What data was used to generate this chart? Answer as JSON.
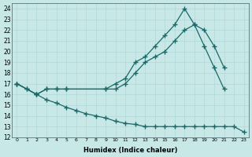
{
  "xlabel": "Humidex (Indice chaleur)",
  "bg_color": "#c8e8e8",
  "grid_color": "#b0d8d8",
  "line_color": "#1a6868",
  "xlim": [
    -0.5,
    23.5
  ],
  "ylim": [
    12,
    24.5
  ],
  "xticks": [
    0,
    1,
    2,
    3,
    4,
    5,
    6,
    7,
    8,
    9,
    10,
    11,
    12,
    13,
    14,
    15,
    16,
    17,
    18,
    19,
    20,
    21,
    22,
    23
  ],
  "yticks": [
    12,
    13,
    14,
    15,
    16,
    17,
    18,
    19,
    20,
    21,
    22,
    23,
    24
  ],
  "series": [
    {
      "x": [
        0,
        1,
        2,
        3,
        4,
        5,
        9,
        10,
        11,
        12,
        13,
        14,
        15,
        16,
        17,
        18,
        19,
        20,
        21
      ],
      "y": [
        17,
        16.5,
        16,
        16.5,
        16.5,
        16.5,
        16.5,
        17,
        17.5,
        19,
        19.5,
        20.5,
        21.5,
        22.5,
        24,
        22.5,
        20.5,
        18.5,
        16.5
      ]
    },
    {
      "x": [
        0,
        1,
        2,
        3,
        4,
        5,
        9,
        10,
        11,
        12,
        13,
        14,
        15,
        16,
        17,
        18,
        19,
        20,
        21
      ],
      "y": [
        17,
        16.5,
        16,
        16.5,
        16.5,
        16.5,
        16.5,
        16.5,
        17,
        18,
        19,
        19.5,
        20,
        21,
        22,
        22.5,
        22,
        20.5,
        18.5
      ]
    },
    {
      "x": [
        0,
        2,
        3,
        4,
        5,
        6,
        7,
        8,
        9,
        10,
        11,
        12,
        13,
        14,
        15,
        16,
        17,
        18,
        19,
        20,
        21,
        22,
        23
      ],
      "y": [
        17,
        16,
        15.5,
        15.2,
        14.8,
        14.5,
        14.2,
        14,
        13.8,
        13.5,
        13.3,
        13.2,
        13,
        13,
        13,
        13,
        13,
        13,
        13,
        13,
        13,
        13,
        12.5
      ]
    }
  ]
}
